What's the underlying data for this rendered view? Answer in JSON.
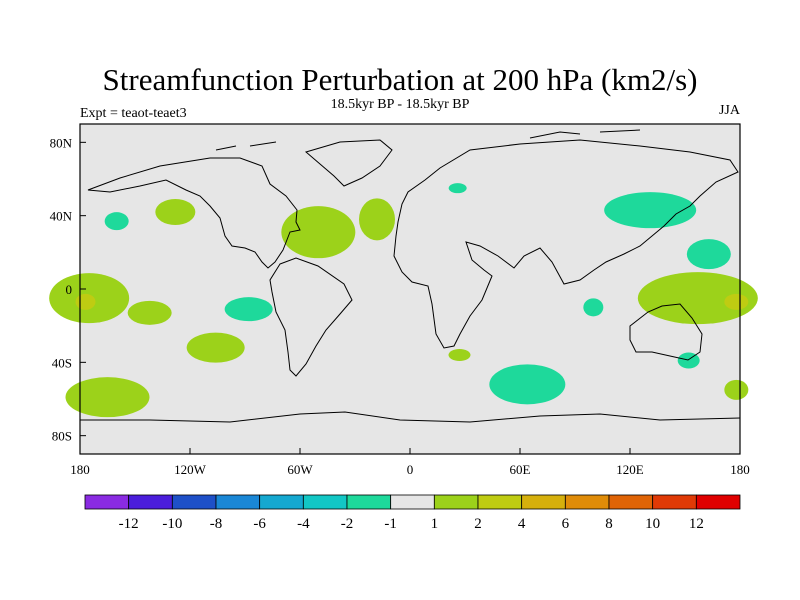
{
  "title": "Streamfunction Perturbation at 200 hPa (km2/s)",
  "left_label": "Expt = teaot-teaet3",
  "center_label": "18.5kyr BP - 18.5kyr BP",
  "right_label": "JJA",
  "lat_ticks": [
    {
      "value": 80,
      "label": "80N"
    },
    {
      "value": 40,
      "label": "40N"
    },
    {
      "value": 0,
      "label": "0"
    },
    {
      "value": -40,
      "label": "40S"
    },
    {
      "value": -80,
      "label": "80S"
    }
  ],
  "lon_ticks": [
    {
      "value": -180,
      "label": "180"
    },
    {
      "value": -120,
      "label": "120W"
    },
    {
      "value": -60,
      "label": "60W"
    },
    {
      "value": 0,
      "label": "0"
    },
    {
      "value": 60,
      "label": "60E"
    },
    {
      "value": 120,
      "label": "120E"
    },
    {
      "value": 180,
      "label": "180"
    }
  ],
  "colorbar": {
    "colors": [
      "#8a2be2",
      "#4b1ddb",
      "#1e50c8",
      "#1a87d6",
      "#15a8d0",
      "#12c7c5",
      "#1ed99b",
      "#e6e6e6",
      "#9cd21a",
      "#bfcc12",
      "#d6b00c",
      "#e08c08",
      "#e06406",
      "#e03a06",
      "#e00000"
    ],
    "labels": [
      "-12",
      "-10",
      "-8",
      "-6",
      "-4",
      "-2",
      "-1",
      "1",
      "2",
      "4",
      "6",
      "8",
      "10",
      "12"
    ]
  },
  "chart_data": {
    "type": "map",
    "projection": "cylindrical-equidistant",
    "lon_range": [
      -180,
      180
    ],
    "lat_range": [
      -90,
      90
    ],
    "variable": "200 hPa streamfunction perturbation",
    "units": "km2/s",
    "season": "JJA",
    "background_class": "-1 to 1",
    "anomaly_regions": [
      {
        "name": "north-pacific-small-positive",
        "lon": -160,
        "lat": 37,
        "class": "-2 to -1"
      },
      {
        "name": "northeast-pacific-negative",
        "lon": -128,
        "lat": 42,
        "class": "1 to 2"
      },
      {
        "name": "west-atlantic-negative",
        "lon": -50,
        "lat": 31,
        "class": "1 to 2"
      },
      {
        "name": "east-atlantic-negative",
        "lon": -18,
        "lat": 38,
        "class": "1 to 2"
      },
      {
        "name": "north-africa-small-positive",
        "lon": 26,
        "lat": 55,
        "class": "-2 to -1"
      },
      {
        "name": "east-asia-positive",
        "lon": 131,
        "lat": 43,
        "class": "-2 to -1"
      },
      {
        "name": "west-pacific-positive",
        "lon": 163,
        "lat": 19,
        "class": "-2 to -1"
      },
      {
        "name": "dateline-equatorial-west",
        "lon": -175,
        "lat": -5,
        "class": "1 to 2"
      },
      {
        "name": "dateline-equatorial-core-west",
        "lon": -177,
        "lat": -7,
        "class": "2 to 4"
      },
      {
        "name": "central-pacific-negative",
        "lon": -142,
        "lat": -13,
        "class": "1 to 2"
      },
      {
        "name": "east-pacific-positive",
        "lon": -88,
        "lat": -11,
        "class": "-2 to -1"
      },
      {
        "name": "south-pacific-negative",
        "lon": -106,
        "lat": -32,
        "class": "1 to 2"
      },
      {
        "name": "indian-ocean-small-positive",
        "lon": 100,
        "lat": -10,
        "class": "-2 to -1"
      },
      {
        "name": "dateline-equatorial-east",
        "lon": 157,
        "lat": -5,
        "class": "1 to 2"
      },
      {
        "name": "dateline-equatorial-core-east",
        "lon": 178,
        "lat": -7,
        "class": "2 to 4"
      },
      {
        "name": "australia-small-positive",
        "lon": 152,
        "lat": -39,
        "class": "-2 to -1"
      },
      {
        "name": "southeast-pacific-negative",
        "lon": 178,
        "lat": -55,
        "class": "1 to 2"
      },
      {
        "name": "south-africa-small-negative",
        "lon": 27,
        "lat": -36,
        "class": "1 to 2"
      },
      {
        "name": "south-indian-positive",
        "lon": 64,
        "lat": -52,
        "class": "-2 to -1"
      },
      {
        "name": "southern-ocean-negative",
        "lon": -165,
        "lat": -59,
        "class": "1 to 2"
      }
    ]
  }
}
